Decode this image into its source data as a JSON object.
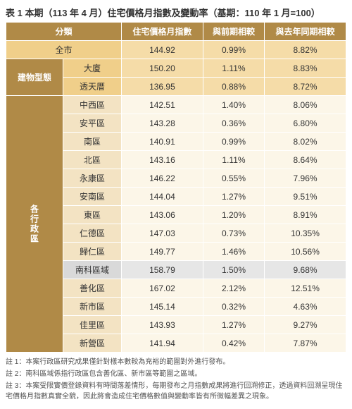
{
  "title": "表 1 本期（113 年 4 月）住宅價格月指數及變動率（基期：110 年 1 月=100）",
  "headers": {
    "cat": "分類",
    "idx": "住宅價格月指數",
    "mom": "與前期相較",
    "yoy": "與去年同期相較"
  },
  "groups": {
    "city": "全市",
    "type": "建物型態",
    "district": "各行政區"
  },
  "rows": {
    "city": {
      "name": "全市",
      "idx": "144.92",
      "mom": "0.99%",
      "yoy": "8.82%"
    },
    "bldg1": {
      "name": "大廈",
      "idx": "150.20",
      "mom": "1.11%",
      "yoy": "8.83%"
    },
    "bldg2": {
      "name": "透天厝",
      "idx": "136.95",
      "mom": "0.88%",
      "yoy": "8.72%"
    },
    "d01": {
      "name": "中西區",
      "idx": "142.51",
      "mom": "1.40%",
      "yoy": "8.06%"
    },
    "d02": {
      "name": "安平區",
      "idx": "143.28",
      "mom": "0.36%",
      "yoy": "6.80%"
    },
    "d03": {
      "name": "南區",
      "idx": "140.91",
      "mom": "0.99%",
      "yoy": "8.02%"
    },
    "d04": {
      "name": "北區",
      "idx": "143.16",
      "mom": "1.11%",
      "yoy": "8.64%"
    },
    "d05": {
      "name": "永康區",
      "idx": "146.22",
      "mom": "0.55%",
      "yoy": "7.96%"
    },
    "d06": {
      "name": "安南區",
      "idx": "144.04",
      "mom": "1.27%",
      "yoy": "9.51%"
    },
    "d07": {
      "name": "東區",
      "idx": "143.06",
      "mom": "1.20%",
      "yoy": "8.91%"
    },
    "d08": {
      "name": "仁德區",
      "idx": "147.03",
      "mom": "0.73%",
      "yoy": "10.35%"
    },
    "d09": {
      "name": "歸仁區",
      "idx": "149.77",
      "mom": "1.46%",
      "yoy": "10.56%"
    },
    "d10": {
      "name": "南科區域",
      "idx": "158.79",
      "mom": "1.50%",
      "yoy": "9.68%"
    },
    "d11": {
      "name": "善化區",
      "idx": "167.02",
      "mom": "2.12%",
      "yoy": "12.51%"
    },
    "d12": {
      "name": "新市區",
      "idx": "145.14",
      "mom": "0.32%",
      "yoy": "4.63%"
    },
    "d13": {
      "name": "佳里區",
      "idx": "143.93",
      "mom": "1.27%",
      "yoy": "9.27%"
    },
    "d14": {
      "name": "新營區",
      "idx": "141.94",
      "mom": "0.42%",
      "yoy": "7.87%"
    }
  },
  "notes": {
    "n1": "註 1：本案行政區研究成果僅針對樣本數較為充裕的範圍對外進行發布。",
    "n2": "註 2：南科區域係指行政區包含善化區、新市區等範圍之區域。",
    "n3": "註 3：本案受限實價登錄資料有時間落差情形，每期發布之月指數成果將進行回溯修正，透過資料回溯呈現住宅價格月指數真實全貌，因此將會造成住宅價格數值與變動率皆有所微幅差異之現象。"
  }
}
